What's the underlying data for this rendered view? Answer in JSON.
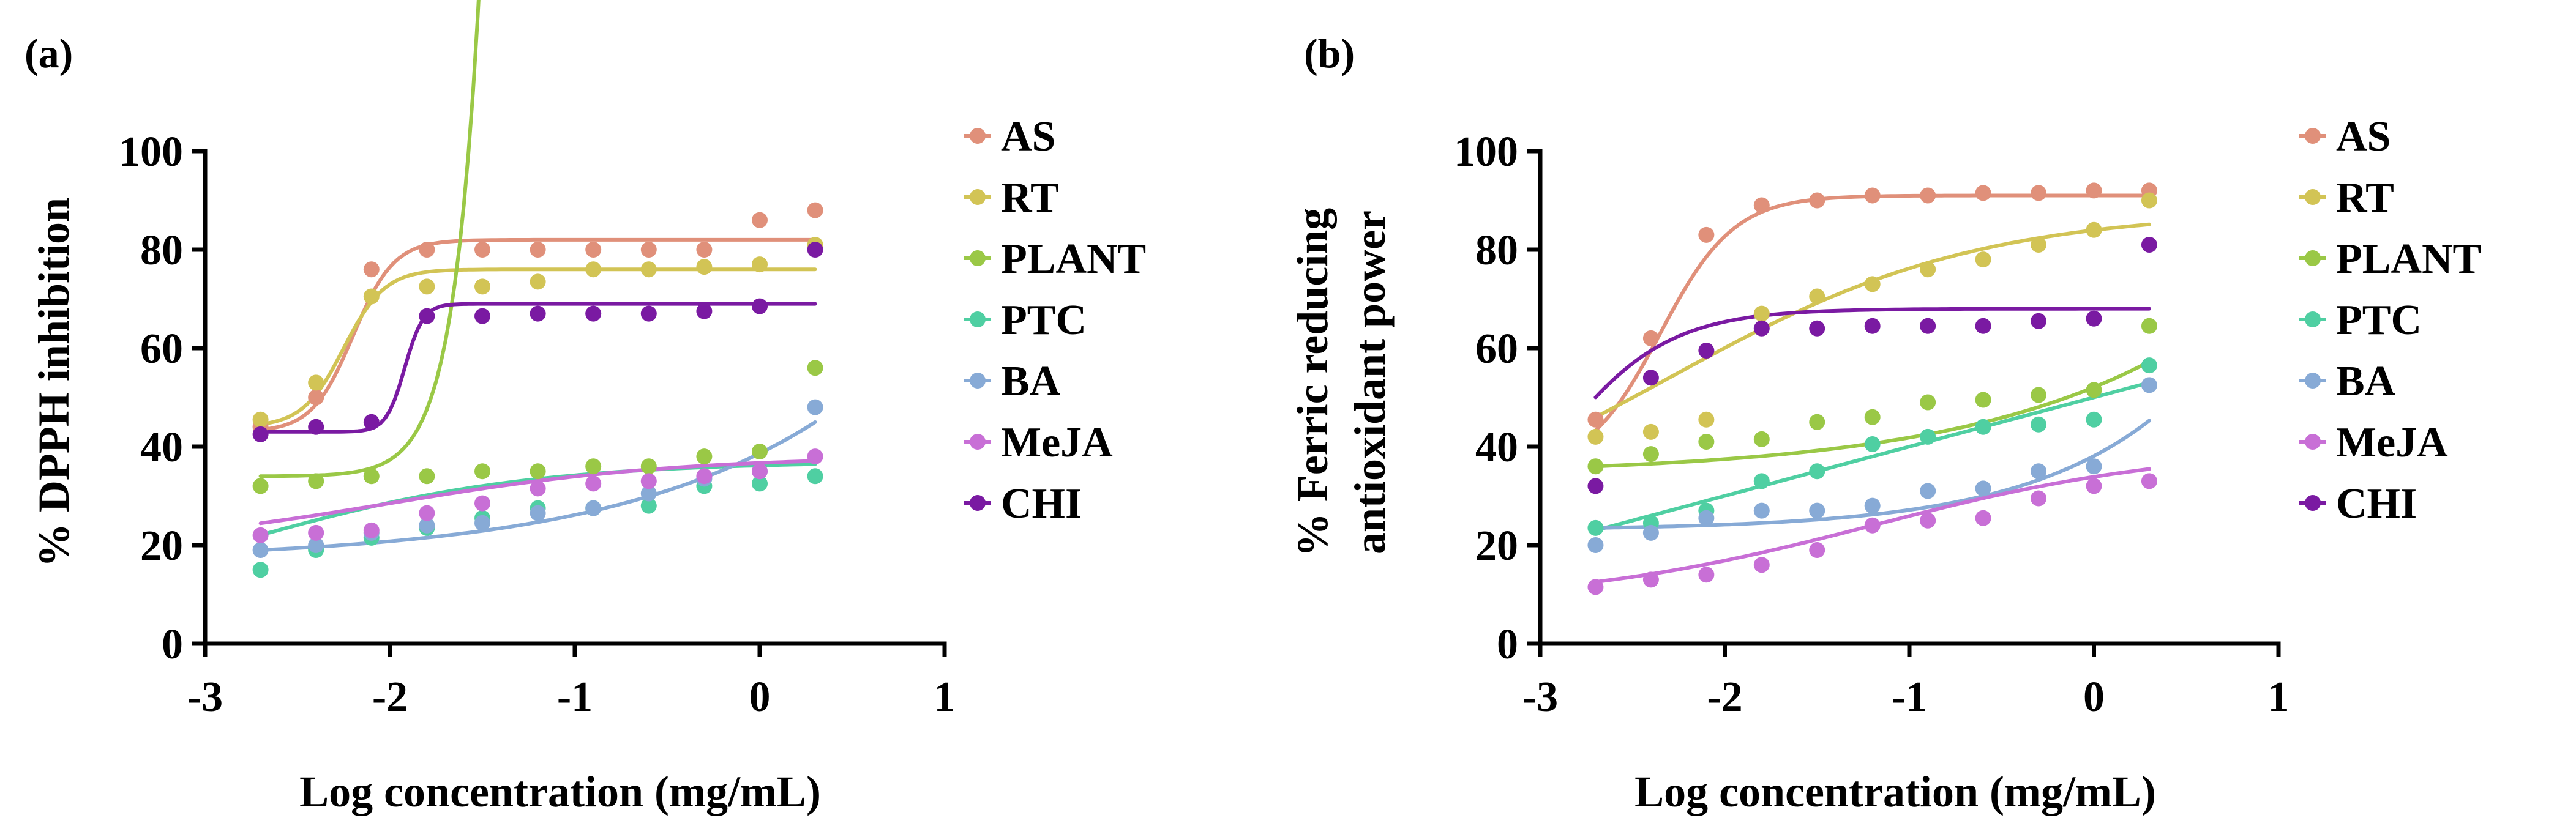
{
  "chart_data": [
    {
      "type": "scatter",
      "panel_label": "(a)",
      "title": "",
      "xlabel": "Log concentration (mg/mL)",
      "ylabel": "% DPPH inhibition",
      "xlim": [
        -3,
        1
      ],
      "ylim": [
        0,
        100
      ],
      "x_ticks": [
        -3,
        -2,
        -1,
        0,
        1
      ],
      "y_ticks": [
        0,
        20,
        40,
        60,
        80,
        100
      ],
      "x_tick_labels": [
        "-3",
        "-2",
        "-1",
        "0",
        "1"
      ],
      "y_tick_labels": [
        "0",
        "20",
        "40",
        "60",
        "80",
        "100"
      ],
      "grid": false,
      "legend_position": "right",
      "x": [
        -2.7,
        -2.4,
        -2.1,
        -1.8,
        -1.5,
        -1.2,
        -0.9,
        -0.6,
        -0.3,
        0.0,
        0.3
      ],
      "series": [
        {
          "name": "AS",
          "color": "#e0907a",
          "values": [
            44,
            50,
            76,
            80,
            80,
            80,
            80,
            80,
            80,
            86,
            88
          ],
          "fit": {
            "kind": "sigmoid",
            "bottom": 43,
            "top": 82,
            "mid": -2.2,
            "k": 9
          }
        },
        {
          "name": "RT",
          "color": "#d2c455",
          "values": [
            45.5,
            53,
            70.5,
            72.5,
            72.5,
            73.5,
            76,
            76,
            76.5,
            77,
            81
          ],
          "fit": {
            "kind": "sigmoid",
            "bottom": 44,
            "top": 76,
            "mid": -2.25,
            "k": 9
          }
        },
        {
          "name": "PLANT",
          "color": "#9ac846",
          "values": [
            32,
            33,
            34,
            34,
            35,
            35,
            36,
            36,
            38,
            39,
            56
          ],
          "fit": {
            "kind": "exp",
            "base": 34,
            "amp": 0.025,
            "rate": 7,
            "x0": -2.7
          }
        },
        {
          "name": "PTC",
          "color": "#4fcfa2",
          "values": [
            15,
            19,
            21.5,
            23.5,
            25.5,
            27.5,
            27.5,
            28,
            32,
            32.5,
            34
          ],
          "fit": {
            "kind": "sigmoid",
            "bottom": 5,
            "top": 37,
            "mid": -2.8,
            "k": 1.3
          }
        },
        {
          "name": "BA",
          "color": "#87aad6",
          "values": [
            19,
            20,
            22.5,
            24,
            24.5,
            26.5,
            27.5,
            30.5,
            33.5,
            35,
            48
          ],
          "fit": {
            "kind": "exp",
            "base": 19,
            "amp": 2.2,
            "rate": 0.85,
            "x0": -2.7
          }
        },
        {
          "name": "MeJA",
          "color": "#c86fd6",
          "values": [
            22,
            22.5,
            23,
            26.5,
            28.5,
            31.5,
            32.5,
            33,
            34,
            35,
            38
          ],
          "fit": {
            "kind": "sigmoid",
            "bottom": 19,
            "top": 38,
            "mid": -2.0,
            "k": 1.3
          }
        },
        {
          "name": "CHI",
          "color": "#7a1aa2",
          "values": [
            42.5,
            44,
            45,
            66.5,
            66.5,
            67,
            67,
            67,
            67.5,
            68.5,
            80
          ],
          "fit": {
            "kind": "sigmoid",
            "bottom": 43,
            "top": 69,
            "mid": -1.92,
            "k": 20
          }
        }
      ]
    },
    {
      "type": "scatter",
      "panel_label": "(b)",
      "title": "",
      "xlabel": "Log concentration (mg/mL)",
      "ylabel_line1": "% Ferric reducing",
      "ylabel_line2": "antioxidant power",
      "xlim": [
        -3,
        1
      ],
      "ylim": [
        0,
        100
      ],
      "x_ticks": [
        -3,
        -2,
        -1,
        0,
        1
      ],
      "y_ticks": [
        0,
        20,
        40,
        60,
        80,
        100
      ],
      "x_tick_labels": [
        "-3",
        "-2",
        "-1",
        "0",
        "1"
      ],
      "y_tick_labels": [
        "0",
        "20",
        "40",
        "60",
        "80",
        "100"
      ],
      "grid": false,
      "legend_position": "right",
      "x": [
        -2.7,
        -2.4,
        -2.1,
        -1.8,
        -1.5,
        -1.2,
        -0.9,
        -0.6,
        -0.3,
        0.0,
        0.3
      ],
      "series": [
        {
          "name": "AS",
          "color": "#e0907a",
          "values": [
            45.5,
            62,
            83,
            89,
            90,
            91,
            91,
            91.5,
            91.5,
            92,
            92
          ],
          "fit": {
            "kind": "sigmoid",
            "bottom": 35,
            "top": 91,
            "mid": -2.35,
            "k": 5
          }
        },
        {
          "name": "RT",
          "color": "#d2c455",
          "values": [
            42,
            43,
            45.5,
            67,
            70.5,
            73,
            76,
            78,
            81,
            84,
            90
          ],
          "fit": {
            "kind": "sigmoid",
            "bottom": 20,
            "top": 88,
            "mid": -2.3,
            "k": 1.2
          }
        },
        {
          "name": "PLANT",
          "color": "#9ac846",
          "values": [
            36,
            38.5,
            41,
            41.5,
            45,
            46,
            49,
            49.5,
            50.5,
            51.5,
            64.5
          ],
          "fit": {
            "kind": "exp",
            "base": 36,
            "amp": 1.8,
            "rate": 0.85,
            "x0": -2.7
          }
        },
        {
          "name": "PTC",
          "color": "#4fcfa2",
          "values": [
            23.5,
            24.5,
            27,
            33,
            35,
            40.5,
            42,
            44,
            44.5,
            45.5,
            56.5
          ],
          "fit": {
            "kind": "linear",
            "slope": 10,
            "intercept": 50
          }
        },
        {
          "name": "BA",
          "color": "#87aad6",
          "values": [
            20,
            22.5,
            25.5,
            27,
            27,
            28,
            31,
            31.5,
            35,
            36,
            52.5
          ],
          "fit": {
            "kind": "exp",
            "base": 23.5,
            "amp": 0.45,
            "rate": 1.3,
            "x0": -2.7
          }
        },
        {
          "name": "MeJA",
          "color": "#c86fd6",
          "values": [
            11.5,
            13,
            14,
            16,
            19,
            24,
            25,
            25.5,
            29.5,
            32,
            33
          ],
          "fit": {
            "kind": "sigmoid",
            "bottom": 8,
            "top": 40,
            "mid": -1.2,
            "k": 1.2
          }
        },
        {
          "name": "CHI",
          "color": "#7a1aa2",
          "values": [
            32,
            54,
            59.5,
            64,
            64,
            64.5,
            64.5,
            64.5,
            65.5,
            66,
            81
          ],
          "fit": {
            "kind": "sigmoid",
            "bottom": 10,
            "top": 68,
            "mid": -2.95,
            "k": 3.2
          }
        }
      ]
    }
  ]
}
